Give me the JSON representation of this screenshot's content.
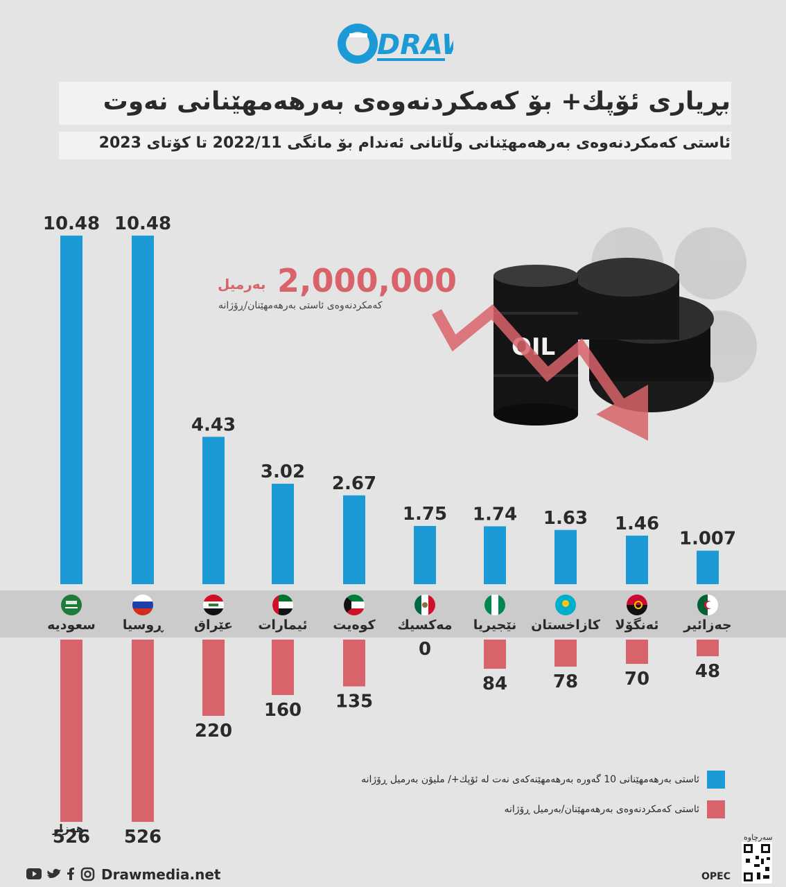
{
  "brand": {
    "logo_text": "DRAW"
  },
  "title": "بڕیاری ئۆپك+ بۆ كەمكردنەوەی بەرهەمهێنانی نەوت",
  "subtitle": "ئاستی كەمكردنەوەی بەرهەمهێنانی وڵاتانی ئەندام بۆ مانگی 2022/11 تا كۆتای 2023",
  "highlight": {
    "value": "2,000,000",
    "unit": "بەرمیل",
    "caption": "كەمكردنەوەی ئاستی بەرهەمهێنان/ڕۆژانە",
    "barrel_label": "OIL"
  },
  "colors": {
    "production": "#1c9ad6",
    "cut": "#d8636a",
    "background": "#e4e4e4",
    "band": "#cbcbcb"
  },
  "chart_data": {
    "type": "bar",
    "categories": [
      "سعودیە",
      "ڕوسیا",
      "عێراق",
      "ئیمارات",
      "كوەیت",
      "مەكسیك",
      "نێجیریا",
      "كازاخستان",
      "ئەنگۆلا",
      "جەزائیر"
    ],
    "flags": [
      "saudi-arabia",
      "russia",
      "iraq",
      "uae",
      "kuwait",
      "mexico",
      "nigeria",
      "kazakhstan",
      "angola",
      "algeria"
    ],
    "series": [
      {
        "name": "ئاستی بەرهەمهێنانی 10 گەورە بەرهەمهێنەكەی نەت لە ئۆپك+/ ملیۆن بەرمیل ڕۆژانە",
        "labels": [
          "10.48",
          "10.48",
          "4.43",
          "3.02",
          "2.67",
          "1.75",
          "1.74",
          "1.63",
          "1.46",
          "1.007"
        ],
        "values": [
          10.48,
          10.48,
          4.43,
          3.02,
          2.67,
          1.75,
          1.74,
          1.63,
          1.46,
          1.007
        ]
      },
      {
        "name": "ئاستی كەمكردنەوەی بەرهەمهێنان/بەرمیل ڕۆژانە",
        "labels": [
          "526",
          "526",
          "220",
          "160",
          "135",
          "0",
          "84",
          "78",
          "70",
          "48"
        ],
        "values": [
          526,
          526,
          220,
          160,
          135,
          0,
          84,
          78,
          70,
          48
        ]
      }
    ],
    "unit_note": "هەزار"
  },
  "footer": {
    "site": "Drawmedia.net",
    "source": "OPEC",
    "qr_caption": "سەرچاوە",
    "social_icons": [
      "youtube-icon",
      "twitter-icon",
      "facebook-icon",
      "instagram-icon"
    ]
  }
}
